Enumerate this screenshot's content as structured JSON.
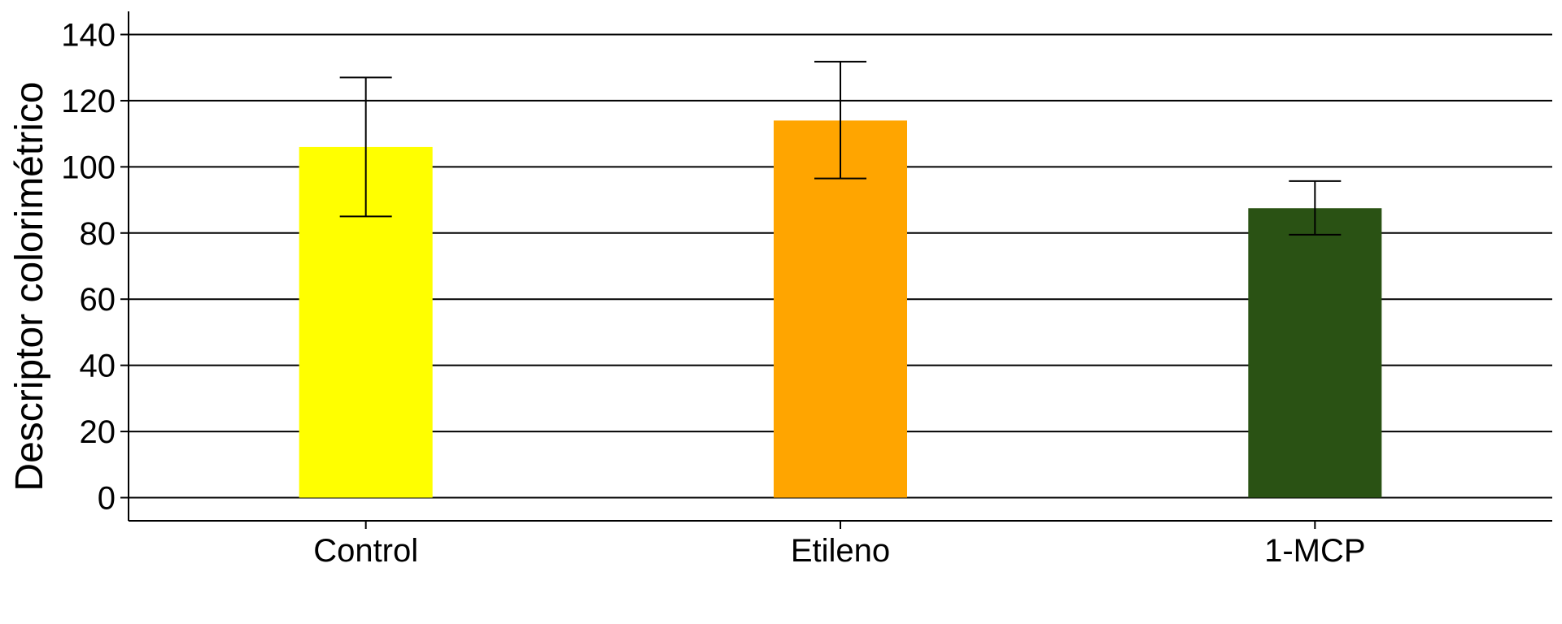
{
  "chart_data": {
    "type": "bar",
    "title": "",
    "xlabel": "",
    "ylabel": "Descriptor colorimétrico",
    "categories": [
      "Control",
      "Etileno",
      "1-MCP"
    ],
    "values": [
      106,
      114,
      87.5
    ],
    "error_low": [
      85,
      96.5,
      79.5
    ],
    "error_high": [
      127,
      131.8,
      95.7
    ],
    "colors": [
      "#FFFF00",
      "#FFA500",
      "#2A5214"
    ],
    "ylim": [
      -7,
      147
    ],
    "yticks": [
      0,
      20,
      40,
      60,
      80,
      100,
      120,
      140
    ],
    "ytick_labels": [
      "0",
      "20",
      "40",
      "60",
      "80",
      "100",
      "120",
      "140"
    ],
    "grid": "horizontal",
    "legend": "none"
  }
}
